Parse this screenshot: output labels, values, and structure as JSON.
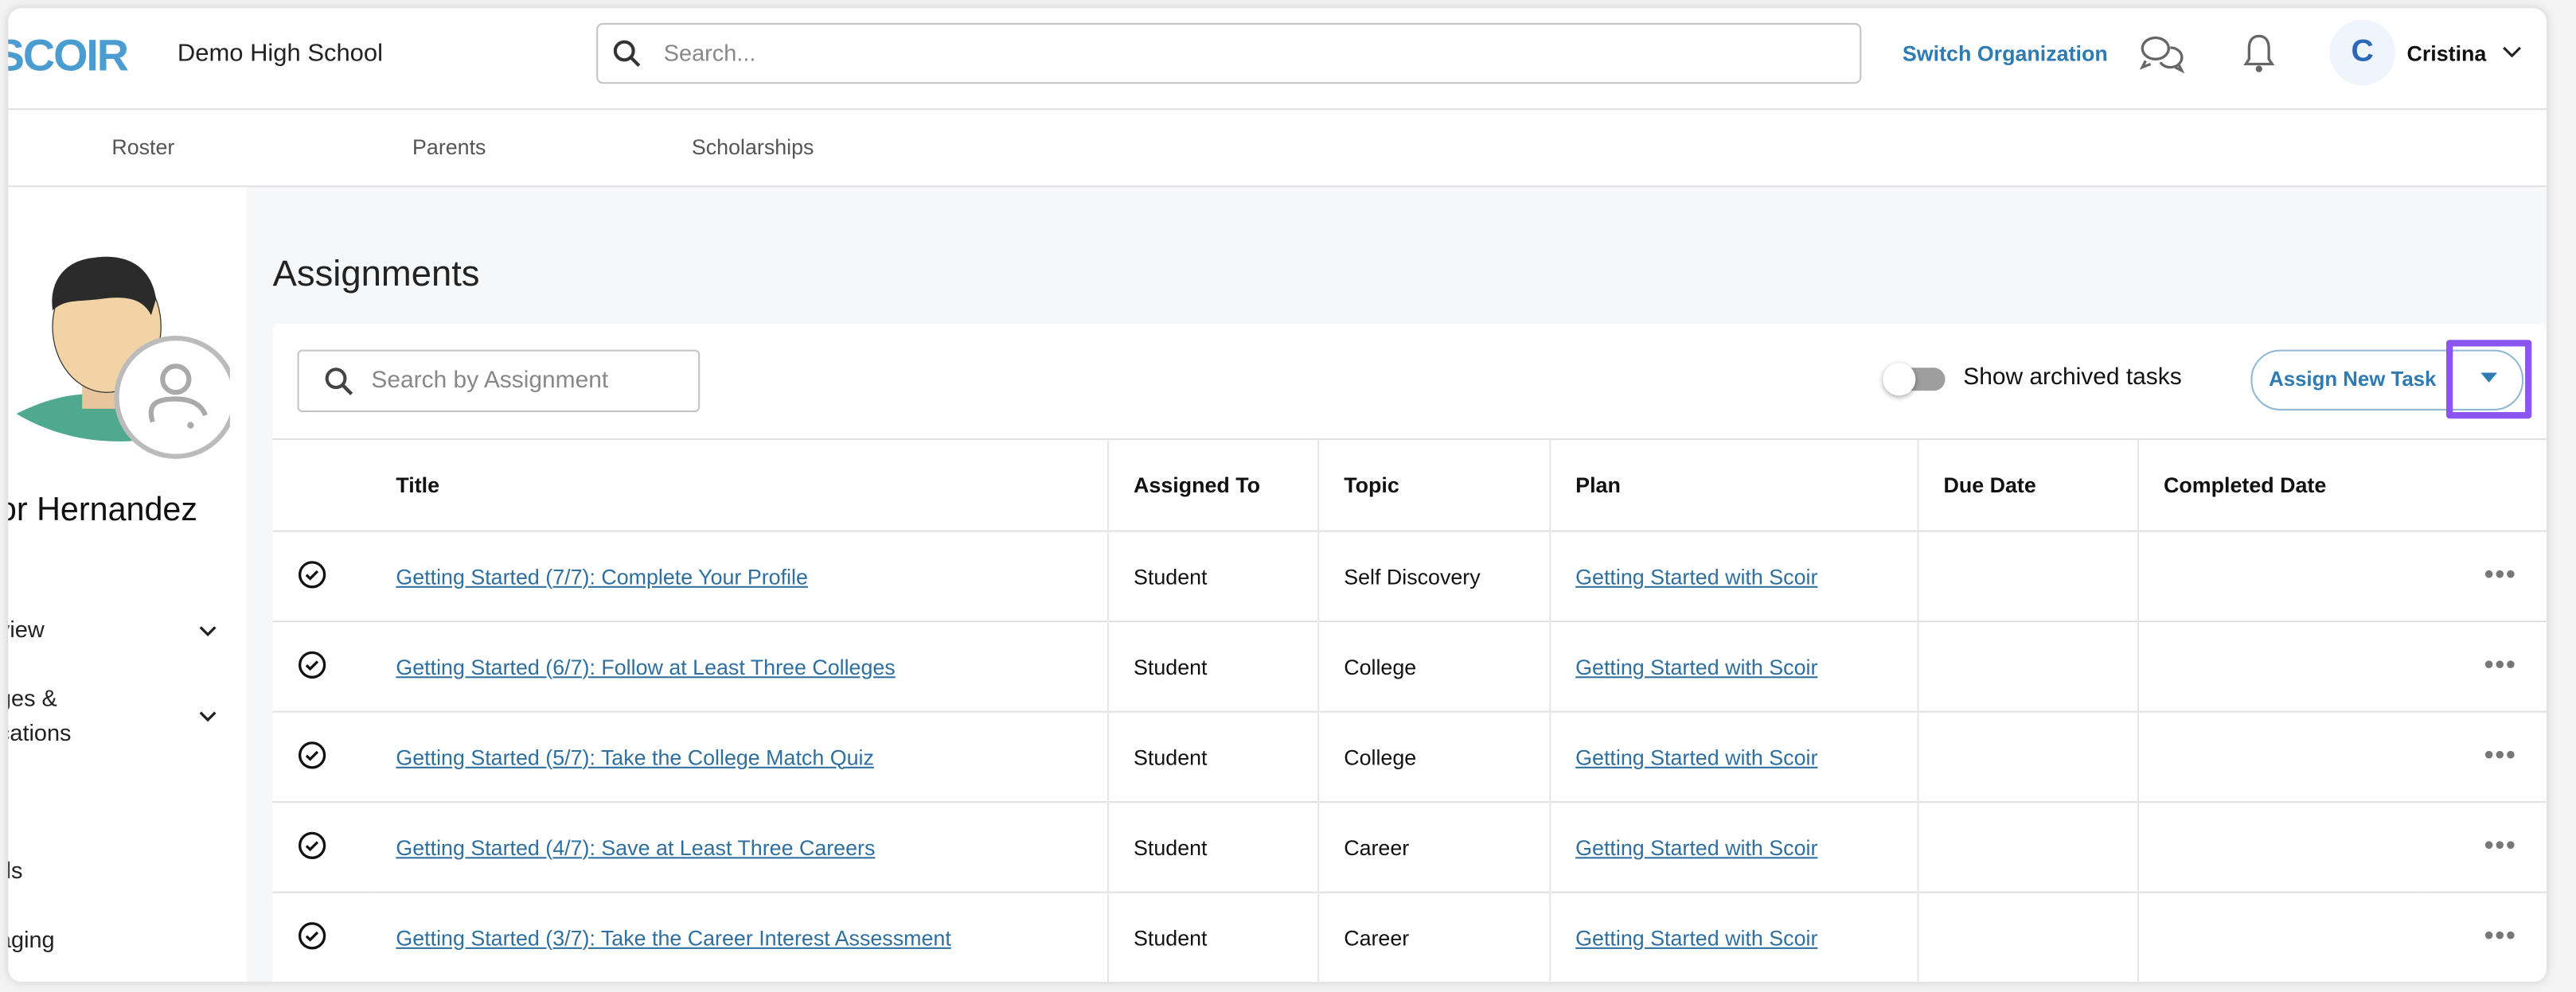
{
  "header": {
    "logo": "SCOIR",
    "school": "Demo High School",
    "search_placeholder": "Search...",
    "switch_org": "Switch Organization",
    "avatar_initial": "C",
    "user_name": "Cristina"
  },
  "nav": {
    "tabs": [
      {
        "label": "Roster"
      },
      {
        "label": "Parents"
      },
      {
        "label": "Scholarships"
      }
    ]
  },
  "sidebar": {
    "student_name": "or Hernandez",
    "items": [
      {
        "label": "view"
      },
      {
        "label": "ges & cations"
      },
      {
        "label": "ds"
      },
      {
        "label": "aging"
      }
    ]
  },
  "main": {
    "title": "Assignments",
    "search_placeholder": "Search by Assignment",
    "archived_label": "Show archived tasks",
    "archived_on": false,
    "assign_label": "Assign New Task",
    "columns": [
      "Title",
      "Assigned To",
      "Topic",
      "Plan",
      "Due Date",
      "Completed Date"
    ],
    "rows": [
      {
        "title": "Getting Started (7/7): Complete Your Profile",
        "assigned": "Student",
        "topic": "Self Discovery",
        "plan": "Getting Started with Scoir",
        "due": "",
        "completed": ""
      },
      {
        "title": "Getting Started (6/7): Follow at Least Three Colleges",
        "assigned": "Student",
        "topic": "College",
        "plan": "Getting Started with Scoir",
        "due": "",
        "completed": ""
      },
      {
        "title": "Getting Started (5/7): Take the College Match Quiz",
        "assigned": "Student",
        "topic": "College",
        "plan": "Getting Started with Scoir",
        "due": "",
        "completed": ""
      },
      {
        "title": "Getting Started (4/7): Save at Least Three Careers",
        "assigned": "Student",
        "topic": "Career",
        "plan": "Getting Started with Scoir",
        "due": "",
        "completed": ""
      },
      {
        "title": "Getting Started (3/7): Take the Career Interest Assessment",
        "assigned": "Student",
        "topic": "Career",
        "plan": "Getting Started with Scoir",
        "due": "",
        "completed": ""
      }
    ],
    "more_label": "•••"
  },
  "colors": {
    "accent": "#2e7bb4",
    "highlight": "#8a55f0",
    "background": "#f6f7f9"
  }
}
